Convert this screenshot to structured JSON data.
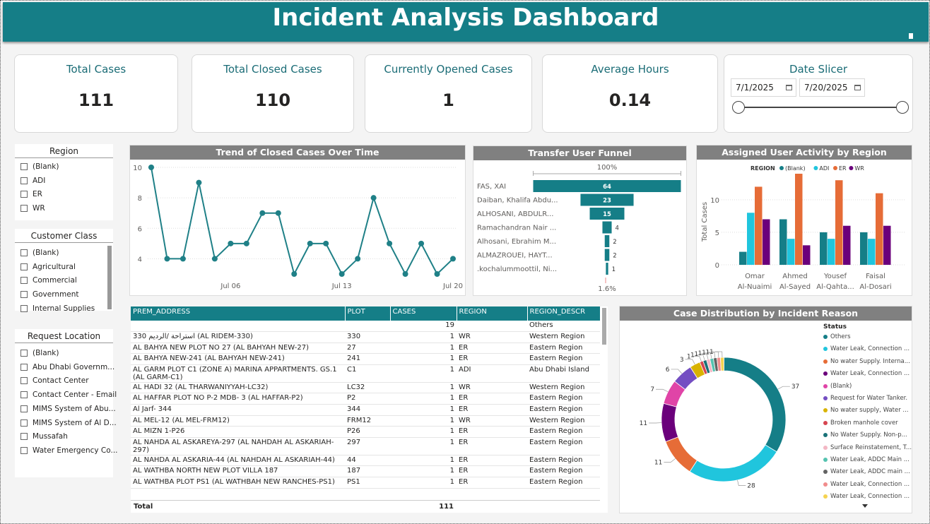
{
  "title": "Incident Analysis Dashboard",
  "kpis": [
    {
      "label": "Total Cases",
      "value": "111"
    },
    {
      "label": "Total Closed Cases",
      "value": "110"
    },
    {
      "label": "Currently Opened Cases",
      "value": "1"
    },
    {
      "label": "Average Hours",
      "value": "0.14"
    }
  ],
  "date_slicer": {
    "label": "Date Slicer",
    "start": "7/1/2025",
    "end": "7/20/2025"
  },
  "slicers": {
    "region": {
      "title": "Region",
      "items": [
        "(Blank)",
        "ADI",
        "ER",
        "WR"
      ]
    },
    "customer_class": {
      "title": "Customer Class",
      "items": [
        "(Blank)",
        "Agricultural",
        "Commercial",
        "Government",
        "Internal Supplies"
      ]
    },
    "request_location": {
      "title": "Request Location",
      "items": [
        "(Blank)",
        "Abu Dhabi Governm...",
        "Contact Center",
        "Contact Center - Email",
        "MIMS System of Abu...",
        "MIMS System of Al D...",
        "Mussafah",
        "Water Emergency Co..."
      ]
    }
  },
  "chart_data": [
    {
      "type": "line",
      "title": "Trend of Closed Cases Over Time",
      "x": [
        "Jul 1",
        "Jul 2",
        "Jul 3",
        "Jul 4",
        "Jul 5",
        "Jul 6",
        "Jul 7",
        "Jul 8",
        "Jul 9",
        "Jul 10",
        "Jul 11",
        "Jul 12",
        "Jul 13",
        "Jul 14",
        "Jul 15",
        "Jul 16",
        "Jul 17",
        "Jul 18",
        "Jul 19",
        "Jul 20"
      ],
      "values": [
        10,
        4,
        4,
        9,
        4,
        5,
        5,
        7,
        7,
        3,
        5,
        5,
        3,
        4,
        8,
        5,
        3,
        5,
        3,
        4
      ],
      "x_tick_labels": [
        "Jul 06",
        "Jul 13",
        "Jul 20"
      ],
      "y_ticks": [
        4,
        6,
        8,
        10
      ],
      "ylim": [
        3,
        10
      ],
      "color": "#1f8087"
    },
    {
      "type": "bar",
      "title": "Transfer User Funnel",
      "top_label": "100%",
      "bottom_label": "1.6%",
      "categories": [
        "FAS, XAI",
        "Daiban, Khalifa Abdu...",
        "ALHOSANI, ABDULR...",
        "Ramachandran Nair ...",
        "Alhosani, Ebrahim M...",
        "ALMAZROUEI, HAYT...",
        ".kochalummoottil, Ni..."
      ],
      "values": [
        64,
        23,
        15,
        4,
        2,
        2,
        1
      ],
      "color": "#157e87"
    },
    {
      "type": "bar",
      "title": "Assigned User Activity by Region",
      "legend_title": "REGION",
      "ylabel": "Total Cases",
      "y_ticks": [
        0,
        5,
        10
      ],
      "ylim": [
        0,
        14
      ],
      "categories": [
        [
          "Omar",
          "Al-Nuaimi"
        ],
        [
          "Ahmed",
          "Al-Sayed"
        ],
        [
          "Yousef",
          "Al-Qahta..."
        ],
        [
          "Faisal",
          "Al-Dosari"
        ]
      ],
      "series": [
        {
          "name": "(Blank)",
          "color": "#157e87",
          "values": [
            2,
            7,
            5,
            5
          ]
        },
        {
          "name": "ADI",
          "color": "#20c5dd",
          "values": [
            8,
            4,
            4,
            4
          ]
        },
        {
          "name": "ER",
          "color": "#e66c37",
          "values": [
            12,
            14,
            13,
            11
          ]
        },
        {
          "name": "WR",
          "color": "#6b007b",
          "values": [
            7,
            3,
            6,
            6
          ]
        }
      ]
    },
    {
      "type": "pie",
      "title": "Case Distribution by Incident Reason",
      "legend_title": "Status",
      "slices": [
        {
          "name": "Others",
          "value": 37,
          "color": "#157e87"
        },
        {
          "name": "Water Leak, Connection ...",
          "value": 28,
          "color": "#20c5dd"
        },
        {
          "name": "No water Supply. Interna...",
          "value": 11,
          "color": "#e66c37"
        },
        {
          "name": "Water Leak, Connection ...",
          "value": 11,
          "color": "#6b007b"
        },
        {
          "name": "(Blank)",
          "value": 7,
          "color": "#e044a7"
        },
        {
          "name": "Request for Water Tanker.",
          "value": 6,
          "color": "#744ec2"
        },
        {
          "name": "No water supply, Water ...",
          "value": 3,
          "color": "#d9b300"
        },
        {
          "name": "Broken manhole cover",
          "value": 1,
          "color": "#d64550"
        },
        {
          "name": "No Water Supply. Non-p...",
          "value": 1,
          "color": "#197278"
        },
        {
          "name": "Surface Reinstatement, T...",
          "value": 1,
          "color": "#f3b7c4"
        },
        {
          "name": "Water Leak, ADDC Main ...",
          "value": 1,
          "color": "#55c3b0"
        },
        {
          "name": "Water Leak, ADDC main ...",
          "value": 1,
          "color": "#636363"
        },
        {
          "name": "Water Leak, Connection ...",
          "value": 1,
          "color": "#f18c8c"
        },
        {
          "name": "Water Leak, Connection ...",
          "value": 1,
          "color": "#f5d350"
        }
      ]
    }
  ],
  "table": {
    "columns": [
      "PREM_ADDRESS",
      "PLOT",
      "CASES",
      "REGION",
      "REGION_DESCR"
    ],
    "rows": [
      [
        "",
        "",
        "19",
        "",
        "Others"
      ],
      [
        "330 استراحة /الرديم (AL RIDEM-330)",
        "330",
        "1",
        "WR",
        "Western Region"
      ],
      [
        "AL BAHYA NEW PLOT NO 27 (AL BAHYAH NEW-27)",
        "27",
        "1",
        "ER",
        "Eastern Region"
      ],
      [
        "AL BAHYA NEW-241 (AL BAHYAH NEW-241)",
        "241",
        "1",
        "ER",
        "Eastern Region"
      ],
      [
        "AL GARM PLOT C1 (ZONE A) MARINA APPARTMENTS. GS.1 (AL GARM-C1)",
        "C1",
        "1",
        "ADI",
        "Abu Dhabi Island"
      ],
      [
        "AL HADI 32 (AL THARWANIYYAH-LC32)",
        "LC32",
        "1",
        "WR",
        "Western Region"
      ],
      [
        "AL HAFFAR PLOT NO P-2 MDB- 3 (AL HAFFAR-P2)",
        "P2",
        "1",
        "ER",
        "Eastern Region"
      ],
      [
        "Al Jarf- 344",
        "344",
        "1",
        "ER",
        "Eastern Region"
      ],
      [
        "AL MEL-12 (AL MEL-FRM12)",
        "FRM12",
        "1",
        "WR",
        "Western Region"
      ],
      [
        "AL MIZN 1-P26",
        "P26",
        "1",
        "ER",
        "Eastern Region"
      ],
      [
        "AL NAHDA AL ASKAREYA-297 (AL NAHDAH AL ASKARIAH-297)",
        "297",
        "1",
        "ER",
        "Eastern Region"
      ],
      [
        "AL NAHDA AL ASKARIA-44 (AL NAHDAH AL ASKARIAH-44)",
        "44",
        "1",
        "ER",
        "Eastern Region"
      ],
      [
        "AL WATHBA NORTH NEW PLOT VILLA 187",
        "187",
        "1",
        "ER",
        "Eastern Region"
      ],
      [
        "AL WATHBA PLOT PS1 (AL WATHBAH NEW RANCHES-PS1)",
        "PS1",
        "1",
        "ER",
        "Eastern Region"
      ]
    ],
    "total_label": "Total",
    "total_value": "111"
  }
}
